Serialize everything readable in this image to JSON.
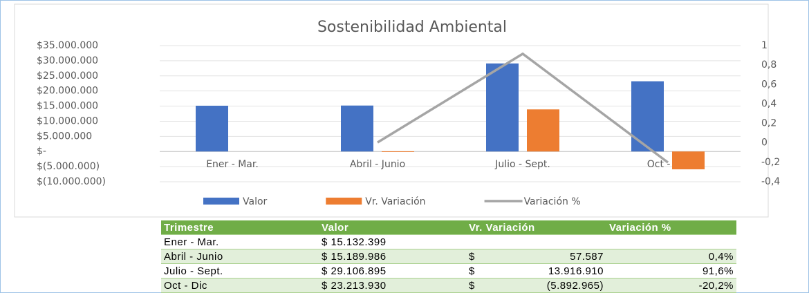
{
  "chart_data": {
    "type": "bar",
    "title": "Sostenibilidad Ambiental",
    "categories": [
      "Ener - Mar.",
      "Abril - Junio",
      "Julio - Sept.",
      "Oct - Dic"
    ],
    "series": [
      {
        "name": "Valor",
        "color": "#4472c4",
        "type": "bar",
        "values": [
          15132399,
          15189986,
          29106895,
          23213930
        ]
      },
      {
        "name": "Vr. Variación",
        "color": "#ed7d31",
        "type": "bar",
        "values": [
          null,
          57587,
          13916910,
          -5892965
        ]
      },
      {
        "name": "Variación %",
        "color": "#a5a5a5",
        "type": "line",
        "axis": "y2",
        "values": [
          null,
          0.004,
          0.916,
          -0.202
        ]
      }
    ],
    "ylim": [
      -10000000,
      35000000
    ],
    "yticks": [
      {
        "value": 35000000,
        "label": "$35.000.000"
      },
      {
        "value": 30000000,
        "label": "$30.000.000"
      },
      {
        "value": 25000000,
        "label": "$25.000.000"
      },
      {
        "value": 20000000,
        "label": "$20.000.000"
      },
      {
        "value": 15000000,
        "label": "$15.000.000"
      },
      {
        "value": 10000000,
        "label": "$10.000.000"
      },
      {
        "value": 5000000,
        "label": "$5.000.000"
      },
      {
        "value": 0,
        "label": "$-"
      },
      {
        "value": -5000000,
        "label": "$(5.000.000)"
      },
      {
        "value": -10000000,
        "label": "$(10.000.000)"
      }
    ],
    "y2lim": [
      -0.4,
      1
    ],
    "y2ticks": [
      1,
      {
        "value": 0.8,
        "label": "0,8"
      },
      {
        "value": 0.6,
        "label": "0,6"
      },
      {
        "value": 0.4,
        "label": "0,4"
      },
      {
        "value": 0.2,
        "label": "0,2"
      },
      0,
      {
        "value": -0.2,
        "label": "-0,2"
      },
      {
        "value": -0.4,
        "label": "-0,4"
      }
    ],
    "grid": true,
    "legend": "bottom"
  },
  "table": {
    "headers": [
      "Trimestre",
      "Valor",
      "Vr. Variación",
      "Variación %"
    ],
    "rows": [
      [
        "Ener - Mar.",
        "$ 15.132.399",
        null,
        null,
        null
      ],
      [
        "Abril - Junio",
        "$ 15.189.986",
        "$",
        "57.587",
        "0,4%"
      ],
      [
        "Julio - Sept.",
        "$ 29.106.895",
        "$",
        "13.916.910",
        "91,6%"
      ],
      [
        "Oct - Dic",
        "$ 23.213.930",
        "$",
        "(5.892.965)",
        "-20,2%"
      ]
    ]
  }
}
